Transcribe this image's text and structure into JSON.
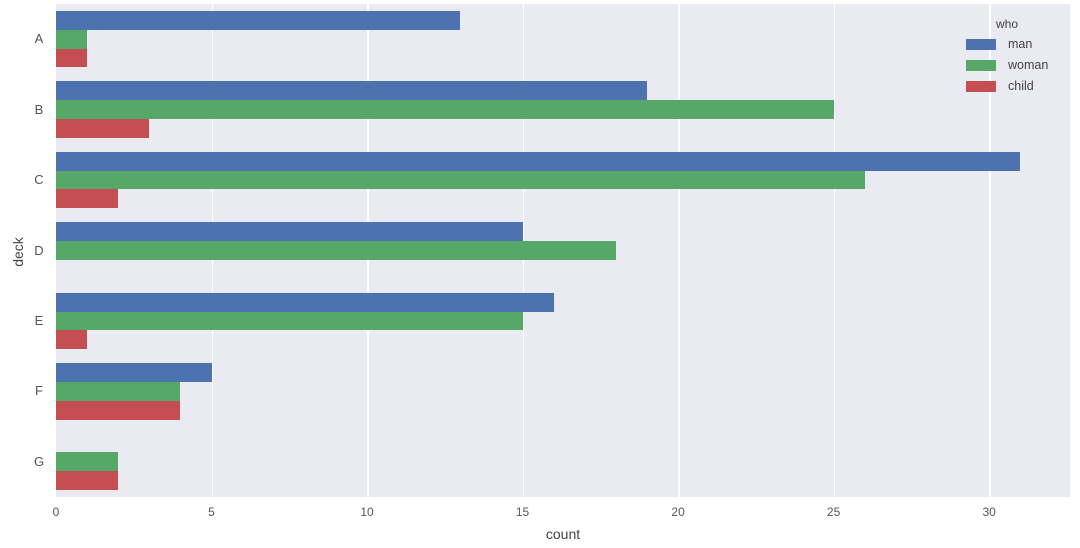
{
  "chart_data": {
    "type": "bar",
    "orientation": "horizontal",
    "title": "",
    "xlabel": "count",
    "ylabel": "deck",
    "categories": [
      "A",
      "B",
      "C",
      "D",
      "E",
      "F",
      "G"
    ],
    "series": [
      {
        "name": "man",
        "color": "#4c72b0",
        "values": [
          13,
          19,
          31,
          15,
          16,
          5,
          0
        ]
      },
      {
        "name": "woman",
        "color": "#55a868",
        "values": [
          1,
          25,
          26,
          18,
          15,
          4,
          2
        ]
      },
      {
        "name": "child",
        "color": "#c44e52",
        "values": [
          1,
          3,
          2,
          0,
          1,
          4,
          2
        ]
      }
    ],
    "xticks": [
      0,
      5,
      10,
      15,
      20,
      25,
      30
    ],
    "xlim": [
      0,
      32.6
    ],
    "grid": true,
    "legend": {
      "title": "who",
      "position": "upper right",
      "entries": [
        "man",
        "woman",
        "child"
      ]
    },
    "background": "#eaeaf2"
  }
}
